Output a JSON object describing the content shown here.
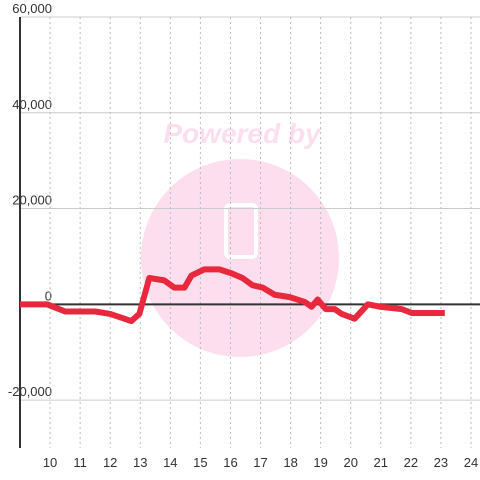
{
  "chart_data": {
    "type": "line",
    "watermark": "Powered by",
    "x": [
      9.0,
      9.9,
      10.5,
      11.5,
      12.0,
      12.47,
      12.7,
      12.97,
      13.3,
      13.8,
      14.13,
      14.47,
      14.7,
      15.13,
      15.63,
      16.03,
      16.4,
      16.73,
      17.07,
      17.47,
      17.97,
      18.47,
      18.7,
      18.9,
      19.17,
      19.47,
      19.7,
      20.13,
      20.57,
      20.97,
      21.7,
      22.03,
      23.13
    ],
    "series": [
      {
        "color": "#e8283c",
        "values": [
          0,
          0,
          -1500,
          -1500,
          -2000,
          -3000,
          -3500,
          -2000,
          5500,
          5000,
          3500,
          3500,
          6000,
          7300,
          7300,
          6500,
          5500,
          4000,
          3500,
          2000,
          1500,
          500,
          -500,
          1000,
          -1000,
          -1000,
          -2000,
          -3000,
          0,
          -500,
          -1000,
          -1800,
          -1800
        ]
      }
    ],
    "xlim": [
      9,
      24.3
    ],
    "xticks": [
      10,
      11,
      12,
      13,
      14,
      15,
      16,
      17,
      18,
      19,
      20,
      21,
      22,
      23,
      24
    ],
    "ylim": [
      -30000,
      60000
    ],
    "yticks": [
      {
        "value": -20000,
        "label": "-20,000"
      },
      0,
      {
        "value": 20000,
        "label": "20,000"
      },
      {
        "value": 40000,
        "label": "40,000"
      },
      {
        "value": 60000,
        "label": "60,000"
      }
    ],
    "grid": true
  }
}
